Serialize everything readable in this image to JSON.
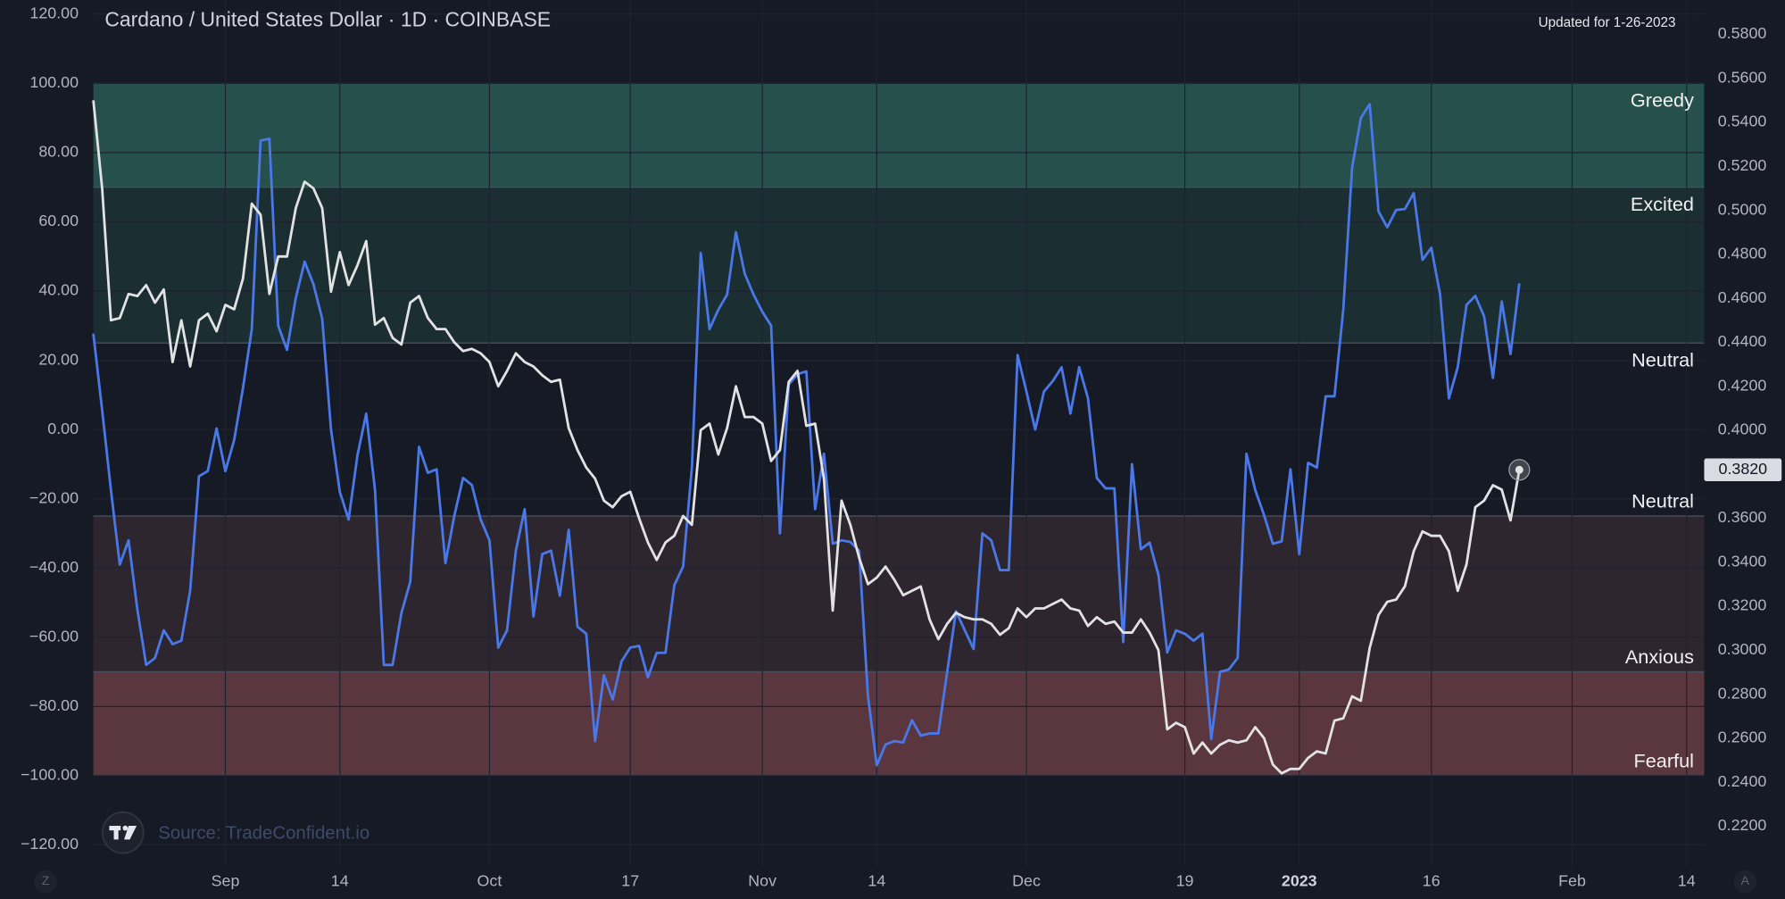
{
  "chart_data": {
    "type": "line",
    "title": "Cardano / United States Dollar · 1D · COINBASE",
    "note": "Updated for 1-26-2023",
    "source": "Source: TradeConfident.io",
    "buttons": [
      "Z",
      "A"
    ],
    "grid": true,
    "xlim": [
      "2022-08-17",
      "2023-02-16"
    ],
    "xticks": [
      {
        "value": "2022-09-01",
        "label": "Sep"
      },
      {
        "value": "2022-09-14",
        "label": "14"
      },
      {
        "value": "2022-10-01",
        "label": "Oct"
      },
      {
        "value": "2022-10-17",
        "label": "17"
      },
      {
        "value": "2022-11-01",
        "label": "Nov"
      },
      {
        "value": "2022-11-14",
        "label": "14"
      },
      {
        "value": "2022-12-01",
        "label": "Dec"
      },
      {
        "value": "2022-12-19",
        "label": "19"
      },
      {
        "value": "2023-01-01",
        "label": "2023"
      },
      {
        "value": "2023-01-16",
        "label": "16"
      },
      {
        "value": "2023-02-01",
        "label": "Feb"
      },
      {
        "value": "2023-02-14",
        "label": "14"
      }
    ],
    "ylim": [
      -126,
      124
    ],
    "yticks": [
      {
        "value": 120,
        "label": "120.00"
      },
      {
        "value": 100,
        "label": "100.00"
      },
      {
        "value": 80,
        "label": "80.00"
      },
      {
        "value": 60,
        "label": "60.00"
      },
      {
        "value": 40,
        "label": "40.00"
      },
      {
        "value": 20,
        "label": "20.00"
      },
      {
        "value": 0,
        "label": "0.00"
      },
      {
        "value": -20,
        "label": "−20.00"
      },
      {
        "value": -40,
        "label": "−40.00"
      },
      {
        "value": -60,
        "label": "−60.00"
      },
      {
        "value": -80,
        "label": "−80.00"
      },
      {
        "value": -100,
        "label": "−100.00"
      },
      {
        "value": -120,
        "label": "−120.00"
      }
    ],
    "y2lim": [
      0.202,
      0.5955
    ],
    "y2ticks": [
      {
        "value": 0.58,
        "label": "0.5800"
      },
      {
        "value": 0.56,
        "label": "0.5600"
      },
      {
        "value": 0.54,
        "label": "0.5400"
      },
      {
        "value": 0.52,
        "label": "0.5200"
      },
      {
        "value": 0.5,
        "label": "0.5000"
      },
      {
        "value": 0.48,
        "label": "0.4800"
      },
      {
        "value": 0.46,
        "label": "0.4600"
      },
      {
        "value": 0.44,
        "label": "0.4400"
      },
      {
        "value": 0.42,
        "label": "0.4200"
      },
      {
        "value": 0.4,
        "label": "0.4000"
      },
      {
        "value": 0.38,
        "label": "0.3800"
      },
      {
        "value": 0.36,
        "label": "0.3600"
      },
      {
        "value": 0.34,
        "label": "0.3400"
      },
      {
        "value": 0.32,
        "label": "0.3200"
      },
      {
        "value": 0.3,
        "label": "0.3000"
      },
      {
        "value": 0.28,
        "label": "0.2800"
      },
      {
        "value": 0.26,
        "label": "0.2600"
      },
      {
        "value": 0.24,
        "label": "0.2400"
      },
      {
        "value": 0.22,
        "label": "0.2200"
      }
    ],
    "zones": [
      {
        "from": 70,
        "to": 100,
        "color": "#26504b"
      },
      {
        "from": 25,
        "to": 70,
        "color": "#1b2e31"
      },
      {
        "from": -70,
        "to": -25,
        "color": "#2e262e"
      },
      {
        "from": -100,
        "to": -70,
        "color": "#5a373e"
      }
    ],
    "zone_labels": [
      {
        "text": "Greedy",
        "value": 100,
        "side": "below"
      },
      {
        "text": "Excited",
        "value": 70,
        "side": "below"
      },
      {
        "text": "Neutral",
        "value": 25,
        "side": "below"
      },
      {
        "text": "Neutral",
        "value": -25,
        "side": "above"
      },
      {
        "text": "Anxious",
        "value": -70,
        "side": "above"
      },
      {
        "text": "Fearful",
        "value": -100,
        "side": "above"
      }
    ],
    "x": [
      "2022-08-17",
      "2022-08-18",
      "2022-08-19",
      "2022-08-20",
      "2022-08-21",
      "2022-08-22",
      "2022-08-23",
      "2022-08-24",
      "2022-08-25",
      "2022-08-26",
      "2022-08-27",
      "2022-08-28",
      "2022-08-29",
      "2022-08-30",
      "2022-08-31",
      "2022-09-01",
      "2022-09-02",
      "2022-09-03",
      "2022-09-04",
      "2022-09-05",
      "2022-09-06",
      "2022-09-07",
      "2022-09-08",
      "2022-09-09",
      "2022-09-10",
      "2022-09-11",
      "2022-09-12",
      "2022-09-13",
      "2022-09-14",
      "2022-09-15",
      "2022-09-16",
      "2022-09-17",
      "2022-09-18",
      "2022-09-19",
      "2022-09-20",
      "2022-09-21",
      "2022-09-22",
      "2022-09-23",
      "2022-09-24",
      "2022-09-25",
      "2022-09-26",
      "2022-09-27",
      "2022-09-28",
      "2022-09-29",
      "2022-09-30",
      "2022-10-01",
      "2022-10-02",
      "2022-10-03",
      "2022-10-04",
      "2022-10-05",
      "2022-10-06",
      "2022-10-07",
      "2022-10-08",
      "2022-10-09",
      "2022-10-10",
      "2022-10-11",
      "2022-10-12",
      "2022-10-13",
      "2022-10-14",
      "2022-10-15",
      "2022-10-16",
      "2022-10-17",
      "2022-10-18",
      "2022-10-19",
      "2022-10-20",
      "2022-10-21",
      "2022-10-22",
      "2022-10-23",
      "2022-10-24",
      "2022-10-25",
      "2022-10-26",
      "2022-10-27",
      "2022-10-28",
      "2022-10-29",
      "2022-10-30",
      "2022-10-31",
      "2022-11-01",
      "2022-11-02",
      "2022-11-03",
      "2022-11-04",
      "2022-11-05",
      "2022-11-06",
      "2022-11-07",
      "2022-11-08",
      "2022-11-09",
      "2022-11-10",
      "2022-11-11",
      "2022-11-12",
      "2022-11-13",
      "2022-11-14",
      "2022-11-15",
      "2022-11-16",
      "2022-11-17",
      "2022-11-18",
      "2022-11-19",
      "2022-11-20",
      "2022-11-21",
      "2022-11-22",
      "2022-11-23",
      "2022-11-24",
      "2022-11-25",
      "2022-11-26",
      "2022-11-27",
      "2022-11-28",
      "2022-11-29",
      "2022-11-30",
      "2022-12-01",
      "2022-12-02",
      "2022-12-03",
      "2022-12-04",
      "2022-12-05",
      "2022-12-06",
      "2022-12-07",
      "2022-12-08",
      "2022-12-09",
      "2022-12-10",
      "2022-12-11",
      "2022-12-12",
      "2022-12-13",
      "2022-12-14",
      "2022-12-15",
      "2022-12-16",
      "2022-12-17",
      "2022-12-18",
      "2022-12-19",
      "2022-12-20",
      "2022-12-21",
      "2022-12-22",
      "2022-12-23",
      "2022-12-24",
      "2022-12-25",
      "2022-12-26",
      "2022-12-27",
      "2022-12-28",
      "2022-12-29",
      "2022-12-30",
      "2022-12-31",
      "2023-01-01",
      "2023-01-02",
      "2023-01-03",
      "2023-01-04",
      "2023-01-05",
      "2023-01-06",
      "2023-01-07",
      "2023-01-08",
      "2023-01-09",
      "2023-01-10",
      "2023-01-11",
      "2023-01-12",
      "2023-01-13",
      "2023-01-14",
      "2023-01-15",
      "2023-01-16",
      "2023-01-17",
      "2023-01-18",
      "2023-01-19",
      "2023-01-20",
      "2023-01-21",
      "2023-01-22",
      "2023-01-23",
      "2023-01-24",
      "2023-01-25",
      "2023-01-26"
    ],
    "series": [
      {
        "color": "#4a78e8",
        "axis": "y",
        "values": [
          27.7,
          5.6,
          -17.5,
          -39,
          -32,
          -52,
          -68,
          -66,
          -58,
          -62,
          -61,
          -46.5,
          -13.5,
          -12,
          0.3,
          -12,
          -3,
          12,
          29,
          83.5,
          84,
          30,
          23,
          38,
          48.5,
          42,
          32,
          0,
          -18,
          -26,
          -7.5,
          4.6,
          -17.5,
          -68,
          -68,
          -53,
          -44,
          -5,
          -12.5,
          -11.5,
          -38.6,
          -25,
          -14,
          -16,
          -26,
          -32,
          -63,
          -58,
          -35,
          -23,
          -54,
          -36,
          -35,
          -48,
          -29,
          -57,
          -59,
          -90,
          -71,
          -78,
          -67,
          -63,
          -62.5,
          -71.6,
          -64.5,
          -64.5,
          -45,
          -39.6,
          -11,
          51,
          29,
          34.6,
          39,
          57,
          45,
          39,
          34,
          30,
          -30,
          13,
          16,
          16.8,
          -23,
          -7,
          -33,
          -32,
          -32.5,
          -35,
          -77,
          -97,
          -91,
          -90,
          -90.4,
          -84,
          -88.4,
          -87.8,
          -87.8,
          -70,
          -52.5,
          -58,
          -63.4,
          -30,
          -32,
          -40.6,
          -40.6,
          21.5,
          11,
          0,
          11,
          14,
          18,
          4.6,
          18,
          9,
          -14,
          -17,
          -17,
          -61.4,
          -10,
          -34.6,
          -32.7,
          -42,
          -64.4,
          -58,
          -59,
          -61,
          -59,
          -89.4,
          -70,
          -69.3,
          -66,
          -7,
          -17.5,
          -24.7,
          -33,
          -32.3,
          -11.5,
          -36,
          -9.6,
          -11,
          9.6,
          9.6,
          34.6,
          75.6,
          90,
          94,
          63,
          58.4,
          63.4,
          63.7,
          68.3,
          49,
          52.5,
          39,
          9,
          18,
          36,
          38.6,
          32.7,
          14.9,
          37,
          21.8,
          42.2
        ]
      },
      {
        "color": "#e2e2e4",
        "axis": "y2",
        "last_label": "0.3820",
        "values": [
          0.55,
          0.51,
          0.45,
          0.451,
          0.462,
          0.461,
          0.466,
          0.458,
          0.464,
          0.431,
          0.45,
          0.429,
          0.45,
          0.453,
          0.445,
          0.457,
          0.455,
          0.469,
          0.503,
          0.498,
          0.462,
          0.479,
          0.479,
          0.501,
          0.513,
          0.51,
          0.501,
          0.463,
          0.481,
          0.466,
          0.475,
          0.486,
          0.448,
          0.451,
          0.442,
          0.439,
          0.458,
          0.461,
          0.451,
          0.446,
          0.446,
          0.44,
          0.436,
          0.437,
          0.435,
          0.431,
          0.42,
          0.427,
          0.435,
          0.431,
          0.429,
          0.425,
          0.422,
          0.423,
          0.401,
          0.391,
          0.383,
          0.378,
          0.368,
          0.365,
          0.37,
          0.372,
          0.36,
          0.349,
          0.341,
          0.349,
          0.352,
          0.361,
          0.357,
          0.4,
          0.403,
          0.389,
          0.401,
          0.42,
          0.406,
          0.406,
          0.403,
          0.386,
          0.391,
          0.422,
          0.427,
          0.402,
          0.403,
          0.378,
          0.318,
          0.368,
          0.357,
          0.342,
          0.33,
          0.333,
          0.338,
          0.332,
          0.325,
          0.327,
          0.329,
          0.314,
          0.305,
          0.312,
          0.317,
          0.315,
          0.314,
          0.314,
          0.312,
          0.307,
          0.31,
          0.319,
          0.315,
          0.319,
          0.319,
          0.321,
          0.323,
          0.319,
          0.318,
          0.311,
          0.315,
          0.312,
          0.313,
          0.308,
          0.308,
          0.314,
          0.308,
          0.3,
          0.264,
          0.267,
          0.265,
          0.253,
          0.258,
          0.253,
          0.257,
          0.259,
          0.258,
          0.259,
          0.265,
          0.26,
          0.248,
          0.244,
          0.246,
          0.246,
          0.251,
          0.254,
          0.253,
          0.268,
          0.269,
          0.279,
          0.277,
          0.301,
          0.316,
          0.322,
          0.323,
          0.329,
          0.345,
          0.354,
          0.352,
          0.352,
          0.345,
          0.327,
          0.339,
          0.365,
          0.368,
          0.375,
          0.373,
          0.359,
          0.382
        ]
      }
    ]
  }
}
